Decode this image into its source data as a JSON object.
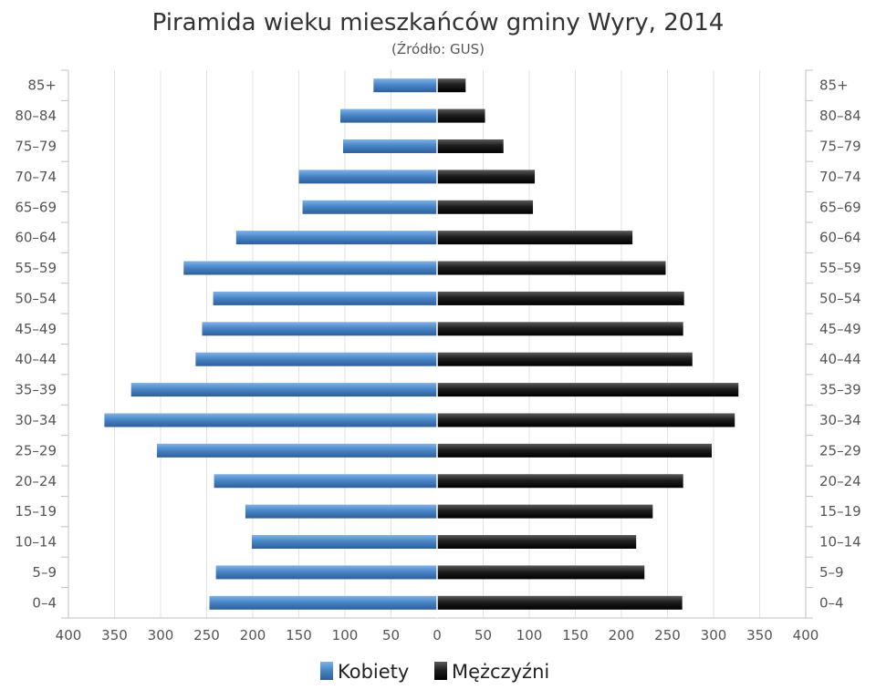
{
  "chart_data": {
    "type": "bar",
    "orientation": "horizontal",
    "layout": "population-pyramid",
    "title": "Piramida wieku mieszkańców gminy Wyry, 2014",
    "subtitle": "(Źródło: GUS)",
    "categories": [
      "85+",
      "80–84",
      "75–79",
      "70–74",
      "65–69",
      "60–64",
      "55–59",
      "50–54",
      "45–49",
      "40–44",
      "35–39",
      "30–34",
      "25–29",
      "20–24",
      "15–19",
      "10–14",
      "5–9",
      "0–4"
    ],
    "series": [
      {
        "name": "Kobiety",
        "side": "left",
        "color": "#4a86c8",
        "values": [
          69,
          105,
          102,
          150,
          146,
          218,
          275,
          243,
          255,
          262,
          332,
          361,
          304,
          242,
          208,
          201,
          240,
          247
        ]
      },
      {
        "name": "Mężczyźni",
        "side": "right",
        "color": "#1e1e1e",
        "values": [
          31,
          52,
          72,
          106,
          104,
          212,
          248,
          268,
          267,
          277,
          327,
          323,
          298,
          267,
          234,
          216,
          225,
          266
        ]
      }
    ],
    "xlim": [
      -400,
      400
    ],
    "x_ticks": [
      "400",
      "350",
      "300",
      "250",
      "200",
      "150",
      "100",
      "50",
      "0",
      "50",
      "100",
      "150",
      "200",
      "250",
      "300",
      "350",
      "400"
    ],
    "grid": true,
    "legend_position": "bottom-center"
  }
}
